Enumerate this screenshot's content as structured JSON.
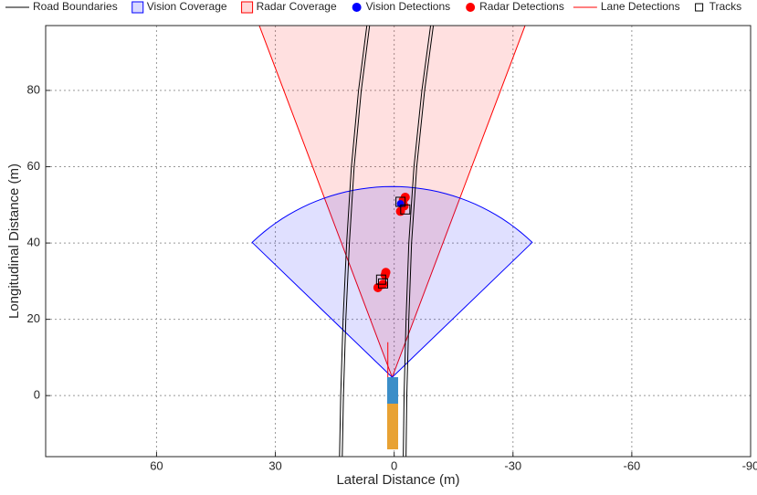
{
  "chart_data": {
    "type": "birds-eye",
    "xlabel": "Lateral Distance (m)",
    "ylabel": "Longitudinal Distance (m)",
    "xlim": [
      88,
      -90
    ],
    "ylim": [
      -16,
      97
    ],
    "xticks": [
      60,
      30,
      0,
      -30,
      -60,
      -90
    ],
    "yticks": [
      0,
      20,
      40,
      60,
      80
    ],
    "grid": true,
    "series": [
      {
        "name": "Road Boundaries",
        "kind": "line",
        "color": "#000000",
        "x": [
          13.8,
          13.5,
          12.9,
          12,
          10.8,
          9,
          6.9,
          null,
          -2.3,
          -2.5,
          -3,
          -3.7,
          -5,
          -7,
          -9.2
        ],
        "y": [
          -16,
          0,
          20,
          40,
          60,
          80,
          97,
          null,
          -16,
          0,
          20,
          40,
          60,
          80,
          97
        ]
      },
      {
        "name": "Vision Coverage",
        "kind": "coverage",
        "color": "#0000ff",
        "position": [
          0.5,
          4.8
        ],
        "range": 50,
        "fov": 90
      },
      {
        "name": "Radar Coverage",
        "kind": "coverage",
        "color": "#ff0000",
        "position": [
          0.5,
          4.8
        ],
        "range": 100,
        "fov": 40
      },
      {
        "name": "Vision Detections",
        "kind": "points",
        "color": "#0000ff",
        "x": [
          -1.6
        ],
        "y": [
          50.3
        ]
      },
      {
        "name": "Radar Detections",
        "kind": "points",
        "color": "#ff0000",
        "x": [
          -2.3,
          -2.8,
          -1.6,
          -2.5,
          2.3,
          2.8,
          4.1,
          2.1
        ],
        "y": [
          51.2,
          52,
          48.3,
          49.7,
          31.6,
          29.2,
          28.3,
          32.3
        ]
      },
      {
        "name": "Lane Detections",
        "kind": "line",
        "color": "#ff0000",
        "x": [
          1.6,
          1.6
        ],
        "y": [
          14,
          0.5
        ]
      },
      {
        "name": "Tracks",
        "kind": "squares",
        "color": "#000000",
        "x": [
          -1.6,
          -2.8,
          3.3,
          2.8
        ],
        "y": [
          50.8,
          48.8,
          30.4,
          29.4
        ]
      }
    ]
  }
}
